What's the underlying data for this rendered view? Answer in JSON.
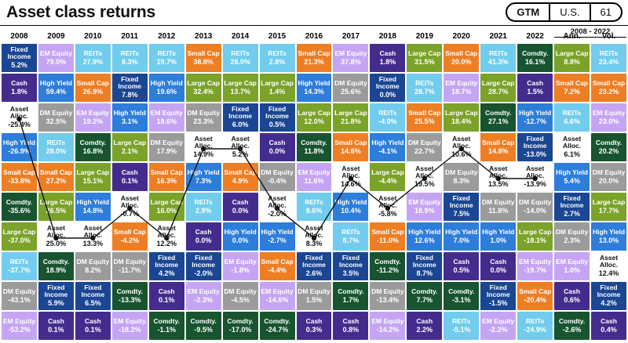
{
  "header": {
    "title": "Asset class returns",
    "badge": {
      "gtm": "GTM",
      "region": "U.S.",
      "page": "61"
    },
    "period_label": "2008 - 2022"
  },
  "colors": {
    "Large Cap": "#7ba229",
    "Small Cap": "#ee7e24",
    "EM Equity": "#c5a5f3",
    "DM Equity": "#9b9b9b",
    "REITs": "#71cced",
    "Fixed Income": "#1a4693",
    "High Yield": "#2d7ddb",
    "Cash": "#432c8d",
    "Comdty.": "#17542f",
    "Asset Alloc.": "#ffffff",
    "line": "#111111"
  },
  "chart_data": {
    "type": "table",
    "title": "Asset class returns",
    "legend_note": "Cells ranked best-to-worst per column; black dotted line traces Asset Alloc.",
    "overlay_line": {
      "series": "Asset Alloc.",
      "from": "2008",
      "to": "2022"
    },
    "columns": [
      {
        "label": "2008",
        "cells": [
          {
            "asset": "Fixed Income",
            "value": "5.2%"
          },
          {
            "asset": "Cash",
            "value": "1.8%"
          },
          {
            "asset": "Asset Alloc.",
            "value": "-25.4%"
          },
          {
            "asset": "High Yield",
            "value": "-26.9%"
          },
          {
            "asset": "Small Cap",
            "value": "-33.8%"
          },
          {
            "asset": "Comdty.",
            "value": "-35.6%"
          },
          {
            "asset": "Large Cap",
            "value": "-37.0%"
          },
          {
            "asset": "REITs",
            "value": "-37.7%"
          },
          {
            "asset": "DM Equity",
            "value": "-43.1%"
          },
          {
            "asset": "EM Equity",
            "value": "-53.2%"
          }
        ]
      },
      {
        "label": "2009",
        "cells": [
          {
            "asset": "EM Equity",
            "value": "79.0%"
          },
          {
            "asset": "High Yield",
            "value": "59.4%"
          },
          {
            "asset": "DM Equity",
            "value": "32.5%"
          },
          {
            "asset": "REITs",
            "value": "28.0%"
          },
          {
            "asset": "Small Cap",
            "value": "27.2%"
          },
          {
            "asset": "Large Cap",
            "value": "26.5%"
          },
          {
            "asset": "Asset Alloc.",
            "value": "25.0%"
          },
          {
            "asset": "Comdty.",
            "value": "18.9%"
          },
          {
            "asset": "Fixed Income",
            "value": "5.9%"
          },
          {
            "asset": "Cash",
            "value": "0.1%"
          }
        ]
      },
      {
        "label": "2010",
        "cells": [
          {
            "asset": "REITs",
            "value": "27.9%"
          },
          {
            "asset": "Small Cap",
            "value": "26.9%"
          },
          {
            "asset": "EM Equity",
            "value": "19.2%"
          },
          {
            "asset": "Comdty.",
            "value": "16.8%"
          },
          {
            "asset": "Large Cap",
            "value": "15.1%"
          },
          {
            "asset": "High Yield",
            "value": "14.8%"
          },
          {
            "asset": "Asset Alloc.",
            "value": "13.3%"
          },
          {
            "asset": "DM Equity",
            "value": "8.2%"
          },
          {
            "asset": "Fixed Income",
            "value": "6.5%"
          },
          {
            "asset": "Cash",
            "value": "0.1%"
          }
        ]
      },
      {
        "label": "2011",
        "cells": [
          {
            "asset": "REITs",
            "value": "8.3%"
          },
          {
            "asset": "Fixed Income",
            "value": "7.8%"
          },
          {
            "asset": "High Yield",
            "value": "3.1%"
          },
          {
            "asset": "Large Cap",
            "value": "2.1%"
          },
          {
            "asset": "Cash",
            "value": "0.1%"
          },
          {
            "asset": "Asset Alloc.",
            "value": "-0.7%"
          },
          {
            "asset": "Small Cap",
            "value": "-4.2%"
          },
          {
            "asset": "DM Equity",
            "value": "-11.7%"
          },
          {
            "asset": "Comdty.",
            "value": "-13.3%"
          },
          {
            "asset": "EM Equity",
            "value": "-18.2%"
          }
        ]
      },
      {
        "label": "2012",
        "cells": [
          {
            "asset": "REITs",
            "value": "19.7%"
          },
          {
            "asset": "High Yield",
            "value": "19.6%"
          },
          {
            "asset": "EM Equity",
            "value": "18.6%"
          },
          {
            "asset": "DM Equity",
            "value": "17.9%"
          },
          {
            "asset": "Small Cap",
            "value": "16.3%"
          },
          {
            "asset": "Large Cap",
            "value": "16.0%"
          },
          {
            "asset": "Asset Alloc.",
            "value": "12.2%"
          },
          {
            "asset": "Fixed Income",
            "value": "4.2%"
          },
          {
            "asset": "Cash",
            "value": "0.1%"
          },
          {
            "asset": "Comdty.",
            "value": "-1.1%"
          }
        ]
      },
      {
        "label": "2013",
        "cells": [
          {
            "asset": "Small Cap",
            "value": "38.8%"
          },
          {
            "asset": "Large Cap",
            "value": "32.4%"
          },
          {
            "asset": "DM Equity",
            "value": "23.3%"
          },
          {
            "asset": "Asset Alloc.",
            "value": "14.9%"
          },
          {
            "asset": "High Yield",
            "value": "7.3%"
          },
          {
            "asset": "REITs",
            "value": "2.9%"
          },
          {
            "asset": "Cash",
            "value": "0.0%"
          },
          {
            "asset": "Fixed Income",
            "value": "-2.0%"
          },
          {
            "asset": "EM Equity",
            "value": "-2.3%"
          },
          {
            "asset": "Comdty.",
            "value": "-9.5%"
          }
        ]
      },
      {
        "label": "2014",
        "cells": [
          {
            "asset": "REITs",
            "value": "28.0%"
          },
          {
            "asset": "Large Cap",
            "value": "13.7%"
          },
          {
            "asset": "Fixed Income",
            "value": "6.0%"
          },
          {
            "asset": "Asset Alloc.",
            "value": "5.2%"
          },
          {
            "asset": "Small Cap",
            "value": "4.9%"
          },
          {
            "asset": "Cash",
            "value": "0.0%"
          },
          {
            "asset": "High Yield",
            "value": "0.0%"
          },
          {
            "asset": "EM Equity",
            "value": "-1.8%"
          },
          {
            "asset": "DM Equity",
            "value": "-4.5%"
          },
          {
            "asset": "Comdty.",
            "value": "-17.0%"
          }
        ]
      },
      {
        "label": "2015",
        "cells": [
          {
            "asset": "REITs",
            "value": "2.8%"
          },
          {
            "asset": "Large Cap",
            "value": "1.4%"
          },
          {
            "asset": "Fixed Income",
            "value": "0.5%"
          },
          {
            "asset": "Cash",
            "value": "0.0%"
          },
          {
            "asset": "DM Equity",
            "value": "-0.4%"
          },
          {
            "asset": "Asset Alloc.",
            "value": "-2.0%"
          },
          {
            "asset": "High Yield",
            "value": "-2.7%"
          },
          {
            "asset": "Small Cap",
            "value": "-4.4%"
          },
          {
            "asset": "EM Equity",
            "value": "-14.6%"
          },
          {
            "asset": "Comdty.",
            "value": "-24.7%"
          }
        ]
      },
      {
        "label": "2016",
        "cells": [
          {
            "asset": "Small Cap",
            "value": "21.3%"
          },
          {
            "asset": "High Yield",
            "value": "14.3%"
          },
          {
            "asset": "Large Cap",
            "value": "12.0%"
          },
          {
            "asset": "Comdty.",
            "value": "11.8%"
          },
          {
            "asset": "EM Equity",
            "value": "11.6%"
          },
          {
            "asset": "REITs",
            "value": "8.6%"
          },
          {
            "asset": "Asset Alloc.",
            "value": "8.3%"
          },
          {
            "asset": "Fixed Income",
            "value": "2.6%"
          },
          {
            "asset": "DM Equity",
            "value": "1.5%"
          },
          {
            "asset": "Cash",
            "value": "0.3%"
          }
        ]
      },
      {
        "label": "2017",
        "cells": [
          {
            "asset": "EM Equity",
            "value": "37.8%"
          },
          {
            "asset": "DM Equity",
            "value": "25.6%"
          },
          {
            "asset": "Large Cap",
            "value": "21.8%"
          },
          {
            "asset": "Small Cap",
            "value": "14.6%"
          },
          {
            "asset": "Asset Alloc.",
            "value": "14.6%"
          },
          {
            "asset": "High Yield",
            "value": "10.4%"
          },
          {
            "asset": "REITs",
            "value": "8.7%"
          },
          {
            "asset": "Fixed Income",
            "value": "3.5%"
          },
          {
            "asset": "Comdty.",
            "value": "1.7%"
          },
          {
            "asset": "Cash",
            "value": "0.8%"
          }
        ]
      },
      {
        "label": "2018",
        "cells": [
          {
            "asset": "Cash",
            "value": "1.8%"
          },
          {
            "asset": "Fixed Income",
            "value": "0.0%"
          },
          {
            "asset": "REITs",
            "value": "-4.0%"
          },
          {
            "asset": "High Yield",
            "value": "-4.1%"
          },
          {
            "asset": "Large Cap",
            "value": "-4.4%"
          },
          {
            "asset": "Asset Alloc.",
            "value": "-5.8%"
          },
          {
            "asset": "Small Cap",
            "value": "-11.0%"
          },
          {
            "asset": "Comdty.",
            "value": "-11.2%"
          },
          {
            "asset": "DM Equity",
            "value": "-13.4%"
          },
          {
            "asset": "EM Equity",
            "value": "-14.2%"
          }
        ]
      },
      {
        "label": "2019",
        "cells": [
          {
            "asset": "Large Cap",
            "value": "31.5%"
          },
          {
            "asset": "REITs",
            "value": "28.7%"
          },
          {
            "asset": "Small Cap",
            "value": "25.5%"
          },
          {
            "asset": "DM Equity",
            "value": "22.7%"
          },
          {
            "asset": "Asset Alloc.",
            "value": "19.5%"
          },
          {
            "asset": "EM Equity",
            "value": "18.9%"
          },
          {
            "asset": "High Yield",
            "value": "12.6%"
          },
          {
            "asset": "Fixed Income",
            "value": "8.7%"
          },
          {
            "asset": "Comdty.",
            "value": "7.7%"
          },
          {
            "asset": "Cash",
            "value": "2.2%"
          }
        ]
      },
      {
        "label": "2020",
        "cells": [
          {
            "asset": "Small Cap",
            "value": "20.0%"
          },
          {
            "asset": "EM Equity",
            "value": "18.7%"
          },
          {
            "asset": "Large Cap",
            "value": "18.4%"
          },
          {
            "asset": "Asset Alloc.",
            "value": "10.6%"
          },
          {
            "asset": "DM Equity",
            "value": "8.3%"
          },
          {
            "asset": "Fixed Income",
            "value": "7.5%"
          },
          {
            "asset": "High Yield",
            "value": "7.0%"
          },
          {
            "asset": "Cash",
            "value": "0.5%"
          },
          {
            "asset": "Comdty.",
            "value": "-3.1%"
          },
          {
            "asset": "REITs",
            "value": "-5.1%"
          }
        ]
      },
      {
        "label": "2021",
        "cells": [
          {
            "asset": "REITs",
            "value": "41.3%"
          },
          {
            "asset": "Large Cap",
            "value": "28.7%"
          },
          {
            "asset": "Comdty.",
            "value": "27.1%"
          },
          {
            "asset": "Small Cap",
            "value": "14.8%"
          },
          {
            "asset": "Asset Alloc.",
            "value": "13.5%"
          },
          {
            "asset": "DM Equity",
            "value": "11.8%"
          },
          {
            "asset": "High Yield",
            "value": "1.0%"
          },
          {
            "asset": "Cash",
            "value": "0.0%"
          },
          {
            "asset": "Fixed Income",
            "value": "-1.5%"
          },
          {
            "asset": "EM Equity",
            "value": "-2.2%"
          }
        ]
      },
      {
        "label": "2022",
        "cells": [
          {
            "asset": "Comdty.",
            "value": "16.1%"
          },
          {
            "asset": "Cash",
            "value": "1.5%"
          },
          {
            "asset": "High Yield",
            "value": "-12.7%"
          },
          {
            "asset": "Fixed Income",
            "value": "-13.0%"
          },
          {
            "asset": "Asset Alloc.",
            "value": "-13.9%"
          },
          {
            "asset": "DM Equity",
            "value": "-14.0%"
          },
          {
            "asset": "Large Cap",
            "value": "-18.1%"
          },
          {
            "asset": "EM Equity",
            "value": "-19.7%"
          },
          {
            "asset": "Small Cap",
            "value": "-20.4%"
          },
          {
            "asset": "REITs",
            "value": "-24.9%"
          }
        ]
      },
      {
        "label": "Ann.",
        "cells": [
          {
            "asset": "Large Cap",
            "value": "8.8%"
          },
          {
            "asset": "Small Cap",
            "value": "7.2%"
          },
          {
            "asset": "REITs",
            "value": "6.6%"
          },
          {
            "asset": "Asset Alloc.",
            "value": "6.1%"
          },
          {
            "asset": "High Yield",
            "value": "5.4%"
          },
          {
            "asset": "Fixed Income",
            "value": "2.7%"
          },
          {
            "asset": "DM Equity",
            "value": "2.3%"
          },
          {
            "asset": "EM Equity",
            "value": "1.0%"
          },
          {
            "asset": "Cash",
            "value": "0.6%"
          },
          {
            "asset": "Comdty.",
            "value": "-2.6%"
          }
        ]
      },
      {
        "label": "Vol.",
        "cells": [
          {
            "asset": "REITs",
            "value": "23.4%"
          },
          {
            "asset": "Small Cap",
            "value": "23.2%"
          },
          {
            "asset": "EM Equity",
            "value": "23.0%"
          },
          {
            "asset": "Comdty.",
            "value": "20.2%"
          },
          {
            "asset": "DM Equity",
            "value": "20.0%"
          },
          {
            "asset": "Large Cap",
            "value": "17.7%"
          },
          {
            "asset": "High Yield",
            "value": "13.0%"
          },
          {
            "asset": "Asset Alloc.",
            "value": "12.4%"
          },
          {
            "asset": "Fixed Income",
            "value": "4.2%"
          },
          {
            "asset": "Cash",
            "value": "0.4%"
          }
        ]
      }
    ]
  }
}
